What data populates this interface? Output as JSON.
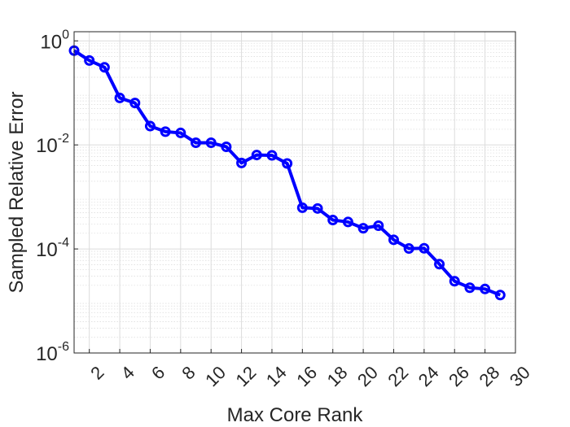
{
  "chart_data": {
    "type": "line",
    "title": "",
    "xlabel": "Max Core Rank",
    "ylabel": "Sampled Relative Error",
    "yscale": "log",
    "xlim": [
      1,
      30
    ],
    "ylim": [
      1e-06,
      1.5
    ],
    "grid": true,
    "minor_grid": true,
    "x_ticks": [
      2,
      4,
      6,
      8,
      10,
      12,
      14,
      16,
      18,
      20,
      22,
      24,
      26,
      28,
      30
    ],
    "y_ticks": [
      {
        "value": 1e-06,
        "base": "10",
        "exp": "-6"
      },
      {
        "value": 0.0001,
        "base": "10",
        "exp": "-4"
      },
      {
        "value": 0.01,
        "base": "10",
        "exp": "-2"
      },
      {
        "value": 1,
        "base": "10",
        "exp": "0"
      }
    ],
    "line_color": "#0000ff",
    "series": [
      {
        "x": [
          1,
          2,
          3,
          4,
          5,
          6,
          7,
          8,
          9,
          10,
          11,
          12,
          13,
          14,
          15,
          16,
          17,
          18,
          19,
          20,
          21,
          22,
          23,
          24,
          25,
          26,
          27,
          28,
          29,
          30
        ],
        "y": [
          0.65,
          0.42,
          0.31,
          0.08,
          0.064,
          0.023,
          0.018,
          0.017,
          0.011,
          0.011,
          0.0092,
          0.0045,
          0.0064,
          0.0063,
          0.0044,
          0.00062,
          0.0006,
          0.00036,
          0.00033,
          0.00025,
          0.00028,
          0.00015,
          0.000102,
          0.000103,
          5.1e-05,
          2.4e-05,
          1.8e-05,
          1.7e-05,
          1.3e-05,
          null
        ]
      }
    ]
  }
}
